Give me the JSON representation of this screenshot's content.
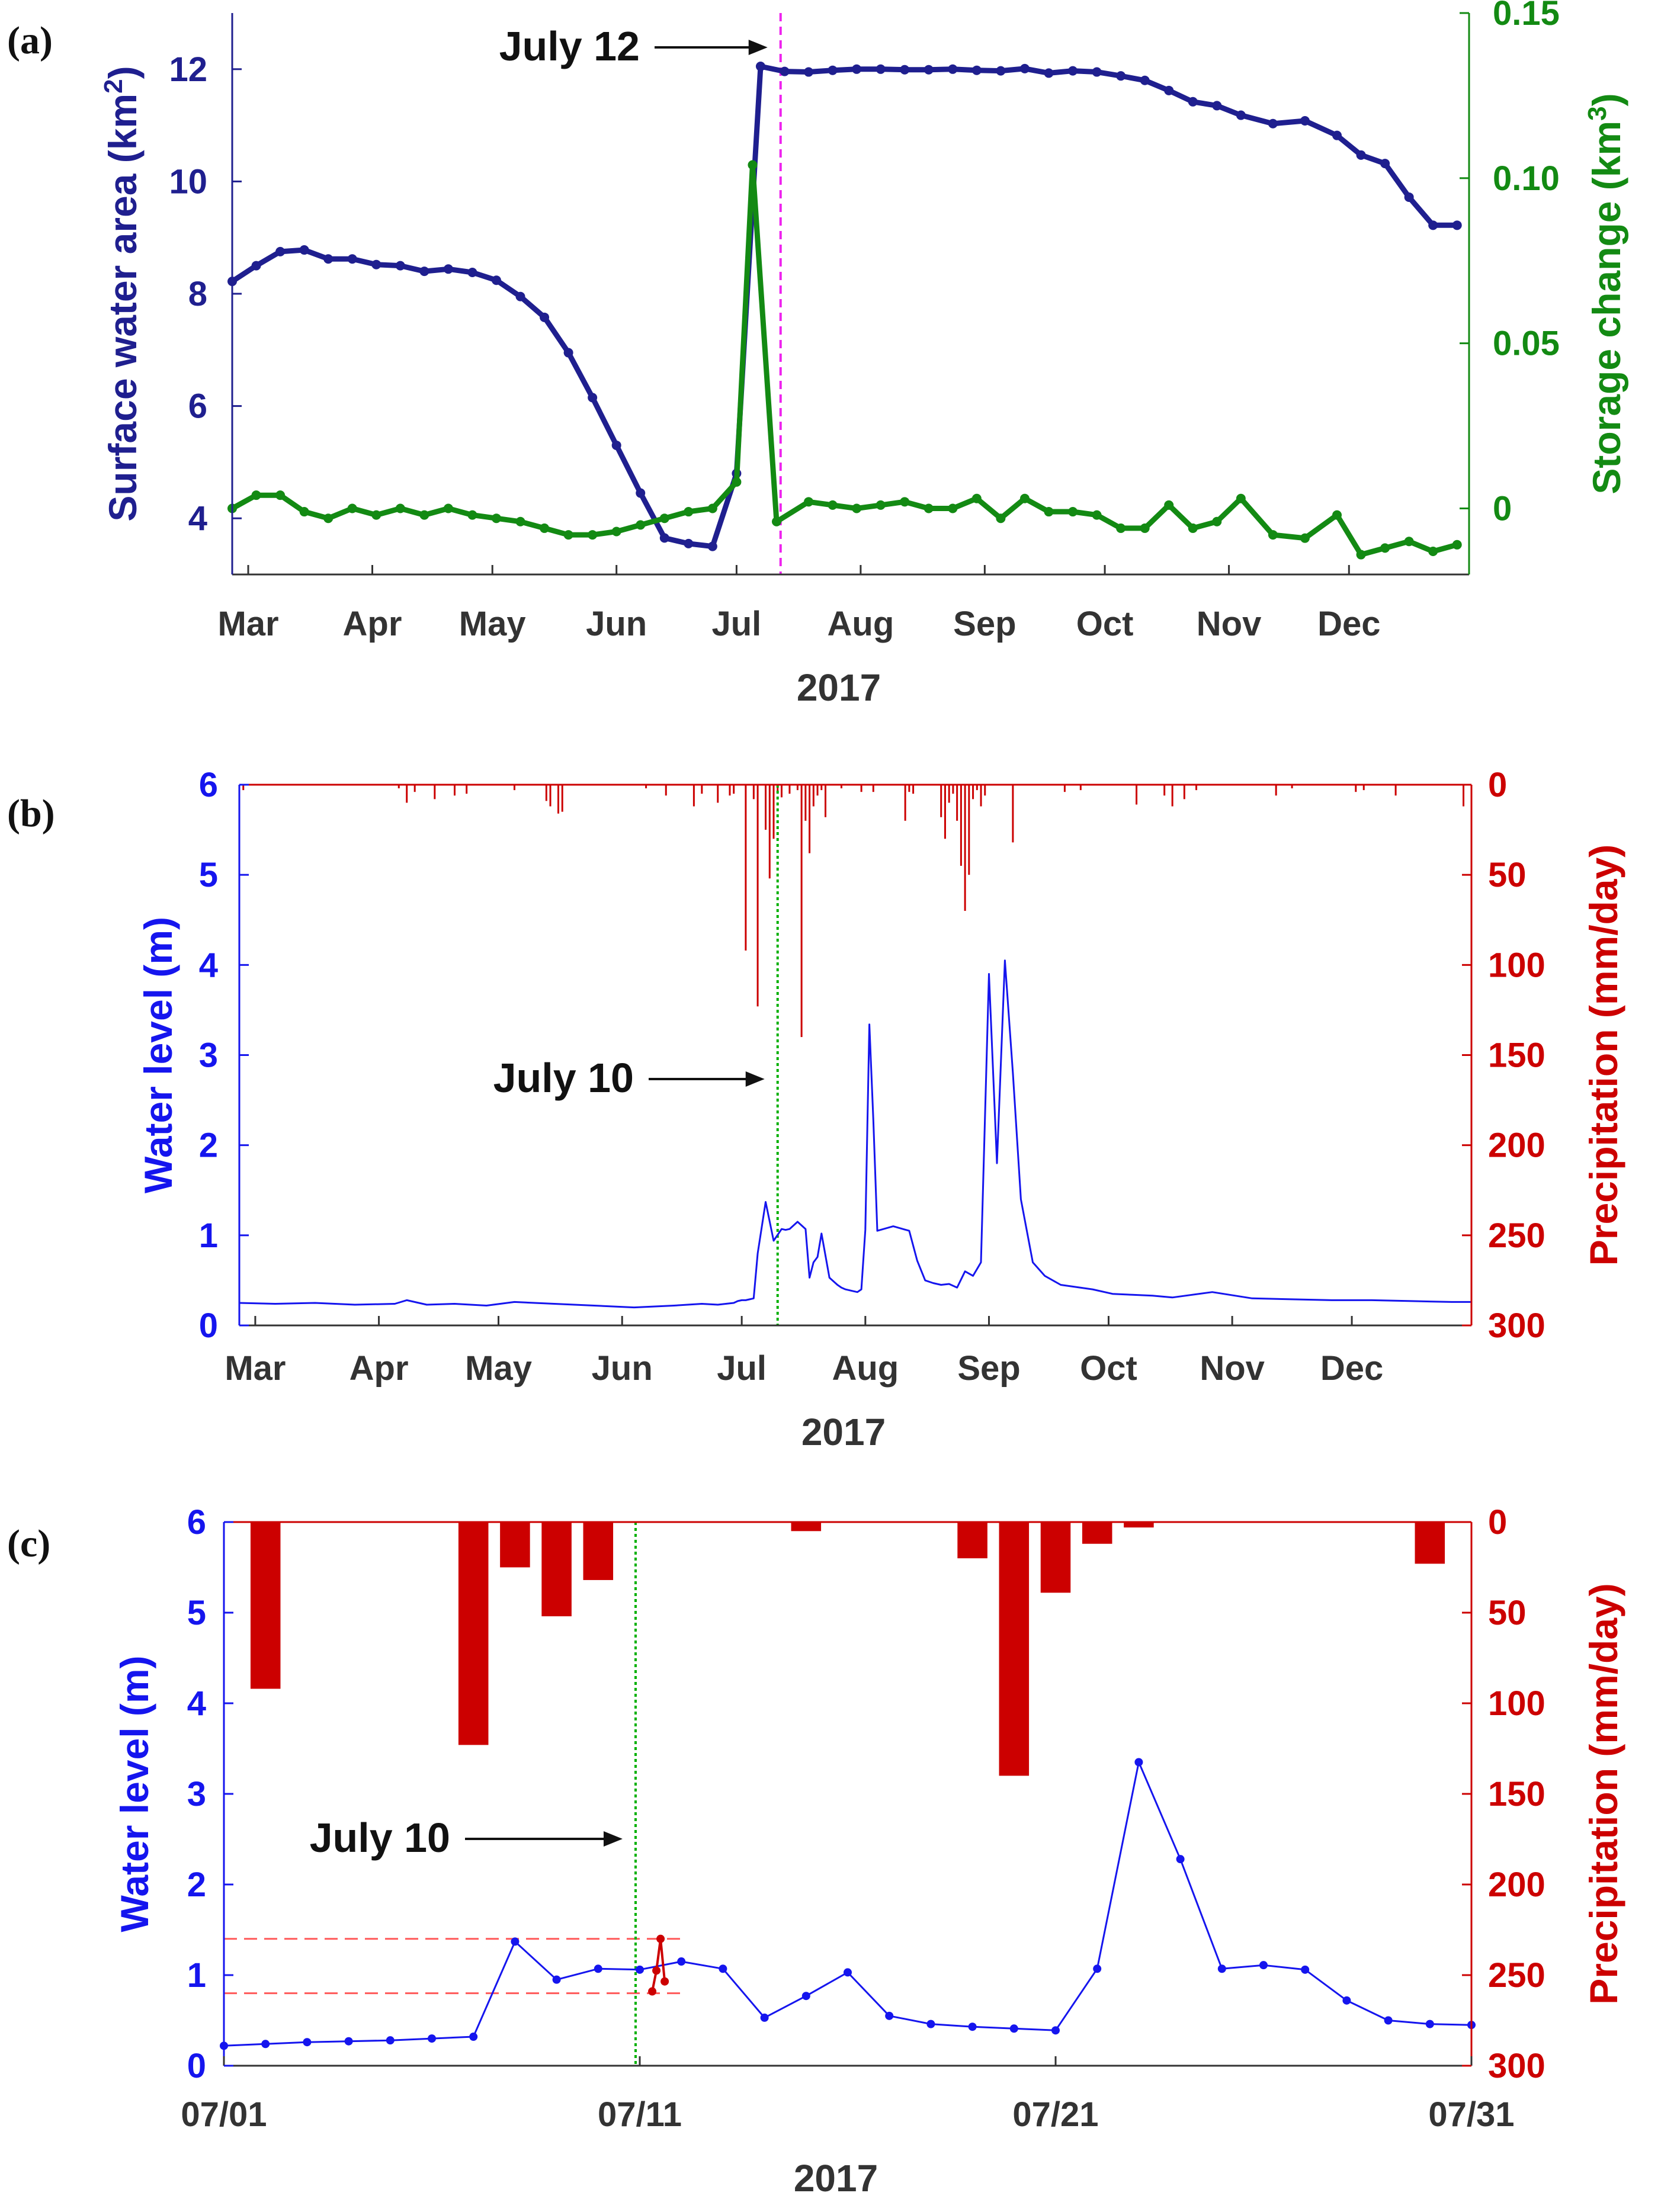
{
  "figure": {
    "colors": {
      "area": "#1f1f8f",
      "storage": "#138a13",
      "level": "#1515ee",
      "precip": "#cc0000",
      "july12_marker": "#ee22ee",
      "july10_marker": "#00b000",
      "threshold": "#ff5a5a",
      "axis": "#333333",
      "text": "#222222"
    },
    "panels": [
      {
        "label": "(a)"
      },
      {
        "label": "(b)"
      },
      {
        "label": "(c)"
      }
    ]
  },
  "chart_data": [
    {
      "id": "a",
      "type": "line",
      "panel_label": "(a)",
      "title": "",
      "xlabel": "2017",
      "x_unit": "day of 2017 (1 = Jan 1)",
      "xlim": [
        56,
        365
      ],
      "x_ticks": [
        {
          "day": 60,
          "label": "Mar"
        },
        {
          "day": 91,
          "label": "Apr"
        },
        {
          "day": 121,
          "label": "May"
        },
        {
          "day": 152,
          "label": "Jun"
        },
        {
          "day": 182,
          "label": "Jul"
        },
        {
          "day": 213,
          "label": "Aug"
        },
        {
          "day": 244,
          "label": "Sep"
        },
        {
          "day": 274,
          "label": "Oct"
        },
        {
          "day": 305,
          "label": "Nov"
        },
        {
          "day": 335,
          "label": "Dec"
        }
      ],
      "y_left": {
        "label_main": "Surface water area (km",
        "label_sup": "2",
        "label_end": ")",
        "ylim": [
          3,
          13
        ],
        "ticks": [
          4,
          6,
          8,
          10,
          12
        ]
      },
      "y_right": {
        "label_main": "Storage change (km",
        "label_sup": "3",
        "label_end": ")",
        "ylim": [
          -0.02,
          0.15
        ],
        "ticks": [
          {
            "value": 0,
            "label": "0"
          },
          {
            "value": 0.05,
            "label": "0.05"
          },
          {
            "value": 0.1,
            "label": "0.10"
          },
          {
            "value": 0.15,
            "label": "0.15"
          }
        ]
      },
      "series": [
        {
          "name": "Surface water area",
          "axis": "left",
          "color_key": "area",
          "x": [
            56,
            62,
            68,
            74,
            80,
            86,
            92,
            98,
            104,
            110,
            116,
            122,
            128,
            134,
            140,
            146,
            152,
            158,
            164,
            170,
            176,
            182,
            188,
            194,
            200,
            206,
            212,
            218,
            224,
            230,
            236,
            242,
            248,
            254,
            260,
            266,
            272,
            278,
            284,
            290,
            296,
            302,
            308,
            316,
            324,
            332,
            338,
            344,
            350,
            356,
            362
          ],
          "values": [
            8.22,
            8.5,
            8.75,
            8.78,
            8.62,
            8.62,
            8.52,
            8.5,
            8.4,
            8.44,
            8.38,
            8.24,
            7.95,
            7.58,
            6.95,
            6.15,
            5.3,
            4.45,
            3.65,
            3.55,
            3.5,
            4.8,
            12.05,
            11.96,
            11.95,
            11.98,
            12.0,
            12.0,
            11.99,
            11.99,
            12.0,
            11.98,
            11.97,
            12.01,
            11.93,
            11.97,
            11.95,
            11.88,
            11.8,
            11.62,
            11.42,
            11.35,
            11.18,
            11.03,
            11.08,
            10.82,
            10.47,
            10.32,
            9.72,
            9.22,
            9.22
          ]
        },
        {
          "name": "Storage change",
          "axis": "right",
          "color_key": "storage",
          "x": [
            56,
            62,
            68,
            74,
            80,
            86,
            92,
            98,
            104,
            110,
            116,
            122,
            128,
            134,
            140,
            146,
            152,
            158,
            164,
            170,
            176,
            182,
            186,
            192,
            200,
            206,
            212,
            218,
            224,
            230,
            236,
            242,
            248,
            254,
            260,
            266,
            272,
            278,
            284,
            290,
            296,
            302,
            308,
            316,
            324,
            332,
            338,
            344,
            350,
            356,
            362
          ],
          "values": [
            0.0,
            0.004,
            0.004,
            -0.001,
            -0.003,
            0.0,
            -0.002,
            0.0,
            -0.002,
            0.0,
            -0.002,
            -0.003,
            -0.004,
            -0.006,
            -0.008,
            -0.008,
            -0.007,
            -0.005,
            -0.003,
            -0.001,
            0.0,
            0.008,
            0.104,
            -0.004,
            0.002,
            0.001,
            0.0,
            0.001,
            0.002,
            0.0,
            0.0,
            0.003,
            -0.003,
            0.003,
            -0.001,
            -0.001,
            -0.002,
            -0.006,
            -0.006,
            0.001,
            -0.006,
            -0.004,
            0.003,
            -0.008,
            -0.009,
            -0.002,
            -0.014,
            -0.012,
            -0.01,
            -0.013,
            -0.011
          ]
        }
      ],
      "annotations": [
        {
          "text": "July 12",
          "day": 193,
          "marker": "vertical-dashed",
          "color_key": "july12_marker"
        }
      ]
    },
    {
      "id": "b",
      "type": "line",
      "panel_label": "(b)",
      "title": "",
      "xlabel": "2017",
      "x_unit": "day of 2017 (1 = Jan 1)",
      "xlim": [
        56,
        365
      ],
      "x_ticks": [
        {
          "day": 60,
          "label": "Mar"
        },
        {
          "day": 91,
          "label": "Apr"
        },
        {
          "day": 121,
          "label": "May"
        },
        {
          "day": 152,
          "label": "Jun"
        },
        {
          "day": 182,
          "label": "Jul"
        },
        {
          "day": 213,
          "label": "Aug"
        },
        {
          "day": 244,
          "label": "Sep"
        },
        {
          "day": 274,
          "label": "Oct"
        },
        {
          "day": 305,
          "label": "Nov"
        },
        {
          "day": 335,
          "label": "Dec"
        }
      ],
      "y_left": {
        "label": "Water level (m)",
        "ylim": [
          0,
          6
        ],
        "ticks": [
          0,
          1,
          2,
          3,
          4,
          5,
          6
        ]
      },
      "y_right": {
        "label": "Precipitation (mm/day)",
        "ylim": [
          300,
          0
        ],
        "inverted": true,
        "ticks": [
          0,
          50,
          100,
          150,
          200,
          250,
          300
        ]
      },
      "series": [
        {
          "name": "Water level",
          "axis": "left",
          "color_key": "level",
          "x": [
            56,
            65,
            75,
            85,
            95,
            98,
            103,
            110,
            118,
            125,
            135,
            145,
            155,
            165,
            172,
            176,
            180,
            181,
            182,
            183,
            184,
            185,
            186,
            188,
            190,
            192,
            193,
            194,
            196,
            198,
            199,
            200,
            201,
            202,
            204,
            206,
            207,
            208,
            210,
            211,
            212,
            213,
            214,
            215,
            216,
            220,
            224,
            226,
            228,
            230,
            232,
            234,
            236,
            238,
            240,
            242,
            244,
            246,
            248,
            250,
            252,
            255,
            258,
            262,
            270,
            275,
            280,
            285,
            290,
            300,
            310,
            320,
            330,
            340,
            350,
            360,
            365
          ],
          "values": [
            0.25,
            0.24,
            0.25,
            0.23,
            0.24,
            0.28,
            0.23,
            0.24,
            0.22,
            0.26,
            0.24,
            0.22,
            0.2,
            0.22,
            0.24,
            0.23,
            0.25,
            0.27,
            0.28,
            0.28,
            0.29,
            0.3,
            0.8,
            1.37,
            0.94,
            1.07,
            1.06,
            1.07,
            1.15,
            1.07,
            0.53,
            0.7,
            0.76,
            1.02,
            0.53,
            0.45,
            0.42,
            0.4,
            0.38,
            0.37,
            0.4,
            1.06,
            3.34,
            2.28,
            1.05,
            1.1,
            1.05,
            0.72,
            0.5,
            0.47,
            0.45,
            0.46,
            0.42,
            0.6,
            0.55,
            0.7,
            3.9,
            1.8,
            4.05,
            2.8,
            1.4,
            0.7,
            0.55,
            0.45,
            0.4,
            0.35,
            0.34,
            0.33,
            0.31,
            0.37,
            0.3,
            0.29,
            0.28,
            0.28,
            0.27,
            0.26,
            0.26
          ]
        },
        {
          "name": "Precipitation",
          "axis": "right",
          "color_key": "precip",
          "style": "bars",
          "x": [
            57,
            96,
            98,
            100,
            105,
            110,
            113,
            125,
            133,
            134,
            136,
            137,
            158,
            163,
            170,
            172,
            176,
            179,
            180,
            183,
            185,
            186,
            188,
            189,
            190,
            191,
            192,
            194,
            196,
            197,
            198,
            199,
            200,
            201,
            202,
            203,
            207,
            212,
            215,
            223,
            224,
            225,
            232,
            233,
            234,
            235,
            236,
            237,
            238,
            239,
            240,
            241,
            242,
            243,
            250,
            263,
            267,
            281,
            288,
            290,
            293,
            296,
            316,
            320,
            336,
            338,
            346,
            363
          ],
          "values": [
            3,
            2,
            10,
            4,
            8,
            6,
            5,
            3,
            9,
            12,
            16,
            15,
            2,
            6,
            12,
            5,
            10,
            6,
            5,
            92,
            8,
            123,
            25,
            52,
            30,
            5,
            7,
            5,
            3,
            140,
            20,
            38,
            12,
            6,
            3,
            18,
            2,
            4,
            4,
            20,
            4,
            5,
            18,
            30,
            10,
            5,
            20,
            45,
            70,
            50,
            8,
            3,
            12,
            6,
            32,
            4,
            3,
            11,
            6,
            12,
            8,
            3,
            6,
            2,
            4,
            3,
            6,
            12
          ]
        }
      ],
      "annotations": [
        {
          "text": "July 10",
          "day": 191,
          "marker": "vertical-dotted",
          "color_key": "july10_marker"
        }
      ]
    },
    {
      "id": "c",
      "type": "line",
      "panel_label": "(c)",
      "title": "",
      "xlabel": "2017",
      "x_unit": "day of July 2017",
      "xlim": [
        1,
        31
      ],
      "x_ticks": [
        {
          "day": 1,
          "label": "07/01"
        },
        {
          "day": 11,
          "label": "07/11"
        },
        {
          "day": 21,
          "label": "07/21"
        },
        {
          "day": 31,
          "label": "07/31"
        }
      ],
      "y_left": {
        "label": "Water level (m)",
        "ylim": [
          0,
          6
        ],
        "ticks": [
          0,
          1,
          2,
          3,
          4,
          5,
          6
        ]
      },
      "y_right": {
        "label": "Precipitation (mm/day)",
        "ylim": [
          300,
          0
        ],
        "inverted": true,
        "ticks": [
          0,
          50,
          100,
          150,
          200,
          250,
          300
        ]
      },
      "series": [
        {
          "name": "Water level",
          "axis": "left",
          "color_key": "level",
          "x": [
            1,
            2,
            3,
            4,
            5,
            6,
            7,
            8,
            9,
            10,
            11,
            12,
            13,
            14,
            15,
            16,
            17,
            18,
            19,
            20,
            21,
            22,
            23,
            24,
            25,
            26,
            27,
            28,
            29,
            30,
            31
          ],
          "values": [
            0.22,
            0.24,
            0.26,
            0.27,
            0.28,
            0.3,
            0.32,
            1.37,
            0.95,
            1.07,
            1.06,
            1.15,
            1.07,
            0.53,
            0.77,
            1.03,
            0.55,
            0.46,
            0.43,
            0.41,
            0.39,
            1.07,
            3.35,
            2.28,
            1.07,
            1.11,
            1.06,
            0.72,
            0.5,
            0.46,
            0.45
          ]
        },
        {
          "name": "Precipitation",
          "axis": "right",
          "color_key": "precip",
          "style": "bars",
          "x": [
            2,
            7,
            8,
            9,
            10,
            15,
            19,
            20,
            21,
            22,
            23,
            30
          ],
          "values": [
            92,
            123,
            25,
            52,
            32,
            5,
            20,
            140,
            39,
            12,
            3,
            23
          ]
        },
        {
          "name": "Satellite water level",
          "axis": "left",
          "color_key": "precip",
          "style": "markers",
          "x": [
            11.3,
            11.4,
            11.5,
            11.6
          ],
          "values": [
            0.82,
            1.05,
            1.4,
            0.93
          ]
        }
      ],
      "reference_lines": [
        {
          "axis": "left",
          "value": 1.4,
          "x_from": 1,
          "x_to": 12,
          "style": "dashed",
          "color_key": "threshold"
        },
        {
          "axis": "left",
          "value": 0.8,
          "x_from": 1,
          "x_to": 12,
          "style": "dashed",
          "color_key": "threshold"
        }
      ],
      "annotations": [
        {
          "text": "July 10",
          "day": 10.9,
          "marker": "vertical-dotted",
          "color_key": "july10_marker"
        }
      ]
    }
  ]
}
